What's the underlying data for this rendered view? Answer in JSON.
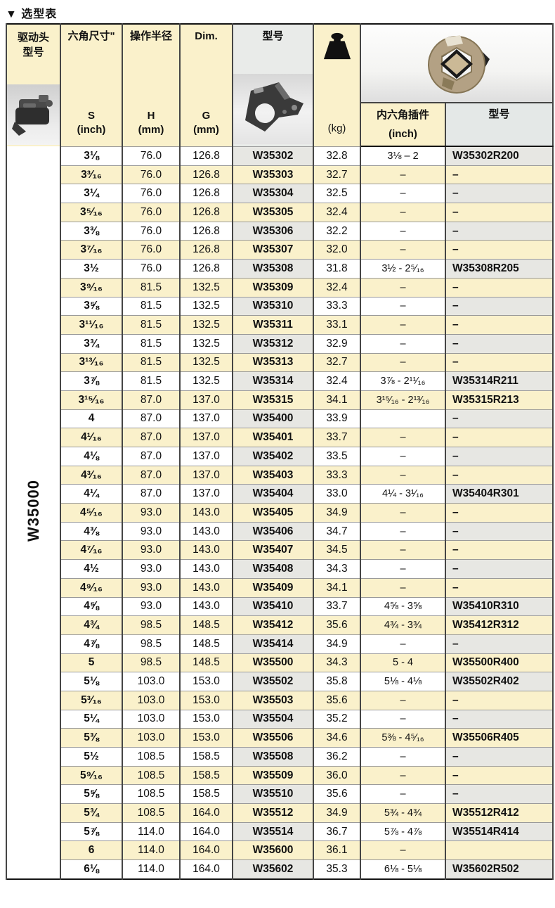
{
  "page": {
    "title": "▼ 选型表"
  },
  "colors": {
    "header_cream": "#FAF1CB",
    "row_stripe_cream": "#FAF1CB",
    "model_column_gray": "#E7E7E3",
    "border_dark": "#454545",
    "border_light": "#9A9A9A",
    "text": "#111111"
  },
  "table": {
    "drive_head_model": "W35000",
    "headers": {
      "drive_line1": "驱动头",
      "drive_line2": "型号",
      "hex_size": "六角尺寸\"",
      "s_label": "S",
      "s_unit": "(inch)",
      "radius": "操作半径",
      "h_label": "H",
      "h_unit": "(mm)",
      "dim": "Dim.",
      "g_label": "G",
      "g_unit": "(mm)",
      "model": "型号",
      "weight_unit": "(kg)",
      "insert_label": "内六角插件",
      "insert_unit": "(inch)",
      "insert_model_label": "型号"
    },
    "rows": [
      [
        "3⅛",
        "76.0",
        "126.8",
        "W35302",
        "32.8",
        "3⅛ – 2",
        "W35302R200"
      ],
      [
        "3³⁄₁₆",
        "76.0",
        "126.8",
        "W35303",
        "32.7",
        "–",
        "–"
      ],
      [
        "3¼",
        "76.0",
        "126.8",
        "W35304",
        "32.5",
        "–",
        "–"
      ],
      [
        "3⁵⁄₁₆",
        "76.0",
        "126.8",
        "W35305",
        "32.4",
        "–",
        "–"
      ],
      [
        "3⅜",
        "76.0",
        "126.8",
        "W35306",
        "32.2",
        "–",
        "–"
      ],
      [
        "3⁷⁄₁₆",
        "76.0",
        "126.8",
        "W35307",
        "32.0",
        "–",
        "–"
      ],
      [
        "3½",
        "76.0",
        "126.8",
        "W35308",
        "31.8",
        "3½ - 2⁵⁄₁₆",
        "W35308R205"
      ],
      [
        "3⁹⁄₁₆",
        "81.5",
        "132.5",
        "W35309",
        "32.4",
        "–",
        "–"
      ],
      [
        "3⅝",
        "81.5",
        "132.5",
        "W35310",
        "33.3",
        "–",
        "–"
      ],
      [
        "3¹¹⁄₁₆",
        "81.5",
        "132.5",
        "W35311",
        "33.1",
        "–",
        "–"
      ],
      [
        "3¾",
        "81.5",
        "132.5",
        "W35312",
        "32.9",
        "–",
        "–"
      ],
      [
        "3¹³⁄₁₆",
        "81.5",
        "132.5",
        "W35313",
        "32.7",
        "–",
        "–"
      ],
      [
        "3⅞",
        "81.5",
        "132.5",
        "W35314",
        "32.4",
        "3⅞ - 2¹¹⁄₁₆",
        "W35314R211"
      ],
      [
        "3¹⁵⁄₁₆",
        "87.0",
        "137.0",
        "W35315",
        "34.1",
        "3¹⁵⁄₁₆ - 2¹³⁄₁₆",
        "W35315R213"
      ],
      [
        "4",
        "87.0",
        "137.0",
        "W35400",
        "33.9",
        "",
        "–"
      ],
      [
        "4¹⁄₁₆",
        "87.0",
        "137.0",
        "W35401",
        "33.7",
        "–",
        "–"
      ],
      [
        "4⅛",
        "87.0",
        "137.0",
        "W35402",
        "33.5",
        "–",
        "–"
      ],
      [
        "4³⁄₁₆",
        "87.0",
        "137.0",
        "W35403",
        "33.3",
        "–",
        "–"
      ],
      [
        "4¼",
        "87.0",
        "137.0",
        "W35404",
        "33.0",
        "4¼ - 3¹⁄₁₆",
        "W35404R301"
      ],
      [
        "4⁵⁄₁₆",
        "93.0",
        "143.0",
        "W35405",
        "34.9",
        "–",
        "–"
      ],
      [
        "4⅜",
        "93.0",
        "143.0",
        "W35406",
        "34.7",
        "–",
        "–"
      ],
      [
        "4⁷⁄₁₆",
        "93.0",
        "143.0",
        "W35407",
        "34.5",
        "–",
        "–"
      ],
      [
        "4½",
        "93.0",
        "143.0",
        "W35408",
        "34.3",
        "–",
        "–"
      ],
      [
        "4⁹⁄₁₆",
        "93.0",
        "143.0",
        "W35409",
        "34.1",
        "–",
        "–"
      ],
      [
        "4⅝",
        "93.0",
        "143.0",
        "W35410",
        "33.7",
        "4⅝ - 3⅝",
        "W35410R310"
      ],
      [
        "4¾",
        "98.5",
        "148.5",
        "W35412",
        "35.6",
        "4¾ - 3¾",
        "W35412R312"
      ],
      [
        "4⅞",
        "98.5",
        "148.5",
        "W35414",
        "34.9",
        "–",
        "–"
      ],
      [
        "5",
        "98.5",
        "148.5",
        "W35500",
        "34.3",
        "5 - 4",
        "W35500R400"
      ],
      [
        "5⅛",
        "103.0",
        "153.0",
        "W35502",
        "35.8",
        "5⅛ - 4⅛",
        "W35502R402"
      ],
      [
        "5³⁄₁₆",
        "103.0",
        "153.0",
        "W35503",
        "35.6",
        "–",
        "–"
      ],
      [
        "5¼",
        "103.0",
        "153.0",
        "W35504",
        "35.2",
        "–",
        "–"
      ],
      [
        "5⅜",
        "103.0",
        "153.0",
        "W35506",
        "34.6",
        "5⅜ - 4⁵⁄₁₆",
        "W35506R405"
      ],
      [
        "5½",
        "108.5",
        "158.5",
        "W35508",
        "36.2",
        "–",
        "–"
      ],
      [
        "5⁹⁄₁₆",
        "108.5",
        "158.5",
        "W35509",
        "36.0",
        "–",
        "–"
      ],
      [
        "5⅝",
        "108.5",
        "158.5",
        "W35510",
        "35.6",
        "–",
        "–"
      ],
      [
        "5¾",
        "108.5",
        "164.0",
        "W35512",
        "34.9",
        "5¾ - 4¾",
        "W35512R412"
      ],
      [
        "5⅞",
        "114.0",
        "164.0",
        "W35514",
        "36.7",
        "5⅞ - 4⅞",
        "W35514R414"
      ],
      [
        "6",
        "114.0",
        "164.0",
        "W35600",
        "36.1",
        "–",
        ""
      ],
      [
        "6⅛",
        "114.0",
        "164.0",
        "W35602",
        "35.3",
        "6⅛ - 5⅛",
        "W35602R502"
      ]
    ]
  }
}
